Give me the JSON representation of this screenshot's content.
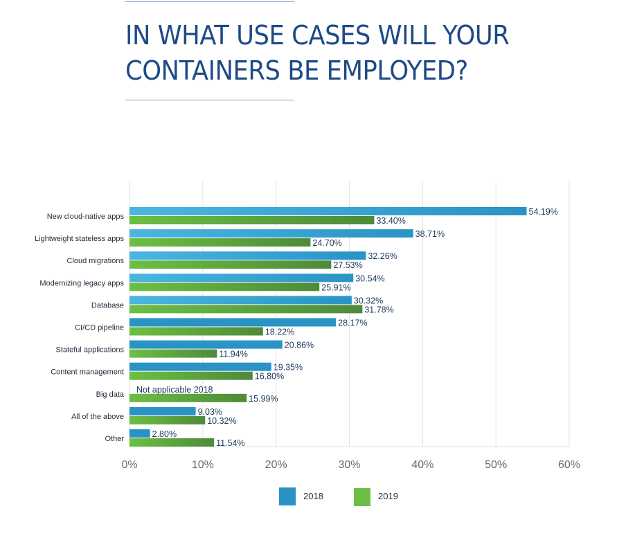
{
  "page": {
    "title_line1": "IN WHAT USE CASES WILL YOUR",
    "title_line2": "CONTAINERS BE EMPLOYED?"
  },
  "colors": {
    "title": "#1d4a86",
    "bar_2018": "#2a93c6",
    "bar_2018_light": "#4bb6e0",
    "bar_2019": "#6cbf44",
    "bar_2019_dark": "#4e8a3a",
    "grid": "#e2e2e2",
    "label": "#1d2b3a"
  },
  "chart_data": {
    "type": "bar",
    "orientation": "horizontal",
    "title": "IN WHAT USE CASES WILL YOUR CONTAINERS BE EMPLOYED?",
    "xlabel": "",
    "ylabel": "",
    "xlim": [
      0,
      60
    ],
    "x_ticks": [
      "0%",
      "10%",
      "20%",
      "30%",
      "40%",
      "50%",
      "60%"
    ],
    "grid": "vertical",
    "legend_position": "bottom",
    "categories": [
      "New cloud-native apps",
      "Lightweight stateless apps",
      "Cloud migrations",
      "Modernizing legacy apps",
      "Database",
      "CI/CD pipeline",
      "Stateful applications",
      "Content management",
      "Big data",
      "All of the above",
      "Other"
    ],
    "series": [
      {
        "name": "2018",
        "values": [
          54.19,
          38.71,
          32.26,
          30.54,
          30.32,
          28.17,
          20.86,
          19.35,
          null,
          9.03,
          2.8
        ],
        "labels": [
          "54.19%",
          "38.71%",
          "32.26%",
          "30.54%",
          "30.32%",
          "28.17%",
          "20.86%",
          "19.35%",
          "Not applicable 2018",
          "9.03%",
          "2.80%"
        ]
      },
      {
        "name": "2019",
        "values": [
          33.4,
          24.7,
          27.53,
          25.91,
          31.78,
          18.22,
          11.94,
          16.8,
          15.99,
          10.32,
          11.54
        ],
        "labels": [
          "33.40%",
          "24.70%",
          "27.53%",
          "25.91%",
          "31.78%",
          "18.22%",
          "11.94%",
          "16.80%",
          "15.99%",
          "10.32%",
          "11.54%"
        ]
      }
    ]
  }
}
